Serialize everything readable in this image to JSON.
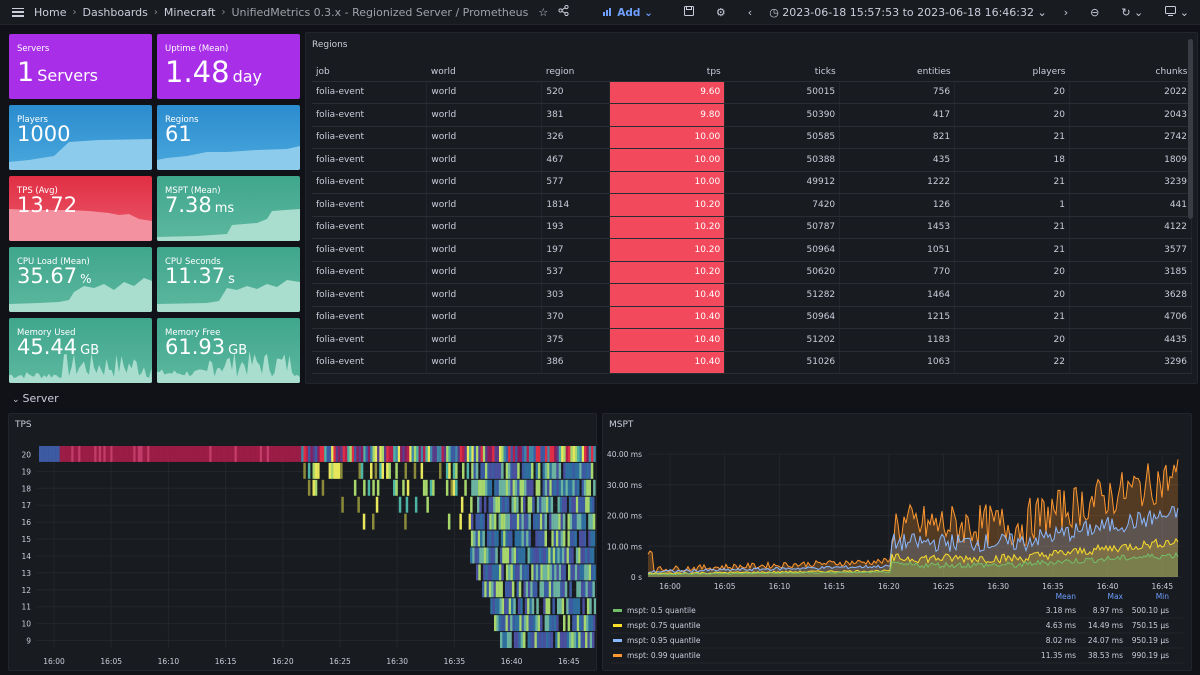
{
  "breadcrumb": {
    "home": "Home",
    "dashboards": "Dashboards",
    "folder": "Minecraft",
    "title": "UnifiedMetrics 0.3.x - Regionized Server / Prometheus"
  },
  "toolbar": {
    "add_label": "Add",
    "time_range": "2023-06-18 15:57:53 to 2023-06-18 16:46:32",
    "icons": [
      "star-icon",
      "share-icon",
      "save-icon",
      "gear-icon",
      "clock-icon",
      "zoom-out-icon",
      "refresh-icon",
      "tv-icon"
    ]
  },
  "stats": {
    "servers": {
      "title": "Servers",
      "value": "1",
      "unit": "Servers",
      "color": "#a82ee8"
    },
    "uptime": {
      "title": "Uptime (Mean)",
      "value": "1.48",
      "unit": "day",
      "color": "#a82ee8"
    },
    "players": {
      "title": "Players",
      "value": "1000",
      "unit": "",
      "color": "#2b8ccf"
    },
    "regions": {
      "title": "Regions",
      "value": "61",
      "unit": "",
      "color": "#2b8ccf"
    },
    "tps": {
      "title": "TPS (Avg)",
      "value": "13.72",
      "unit": "",
      "color": "#e02f44"
    },
    "mspt": {
      "title": "MSPT (Mean)",
      "value": "7.38",
      "unit": "ms",
      "color": "#3fa68c"
    },
    "cpu_load": {
      "title": "CPU Load (Mean)",
      "value": "35.67",
      "unit": "%",
      "color": "#3fa68c"
    },
    "cpu_seconds": {
      "title": "CPU Seconds",
      "value": "11.37",
      "unit": "s",
      "color": "#3fa68c"
    },
    "memory_used": {
      "title": "Memory Used",
      "value": "45.44",
      "unit": "GB",
      "color": "#3fa68c"
    },
    "memory_free": {
      "title": "Memory Free",
      "value": "61.93",
      "unit": "GB",
      "color": "#3fa68c"
    }
  },
  "regions_table": {
    "title": "Regions",
    "columns": [
      "job",
      "world",
      "region",
      "tps",
      "ticks",
      "entities",
      "players",
      "chunks"
    ],
    "rows": [
      [
        "folia-event",
        "world",
        "520",
        "9.60",
        "50015",
        "756",
        "20",
        "2022"
      ],
      [
        "folia-event",
        "world",
        "381",
        "9.80",
        "50390",
        "417",
        "20",
        "2043"
      ],
      [
        "folia-event",
        "world",
        "326",
        "10.00",
        "50585",
        "821",
        "21",
        "2742"
      ],
      [
        "folia-event",
        "world",
        "467",
        "10.00",
        "50388",
        "435",
        "18",
        "1809"
      ],
      [
        "folia-event",
        "world",
        "577",
        "10.00",
        "49912",
        "1222",
        "21",
        "3239"
      ],
      [
        "folia-event",
        "world",
        "1814",
        "10.20",
        "7420",
        "126",
        "1",
        "441"
      ],
      [
        "folia-event",
        "world",
        "193",
        "10.20",
        "50787",
        "1453",
        "21",
        "4122"
      ],
      [
        "folia-event",
        "world",
        "197",
        "10.20",
        "50964",
        "1051",
        "21",
        "3577"
      ],
      [
        "folia-event",
        "world",
        "537",
        "10.20",
        "50620",
        "770",
        "20",
        "3185"
      ],
      [
        "folia-event",
        "world",
        "303",
        "10.40",
        "51282",
        "1464",
        "20",
        "3628"
      ],
      [
        "folia-event",
        "world",
        "370",
        "10.40",
        "50964",
        "1215",
        "21",
        "4706"
      ],
      [
        "folia-event",
        "world",
        "375",
        "10.40",
        "51202",
        "1183",
        "20",
        "4435"
      ],
      [
        "folia-event",
        "world",
        "386",
        "10.40",
        "51026",
        "1063",
        "22",
        "3296"
      ]
    ]
  },
  "row_section": {
    "label": "Server"
  },
  "tps_panel": {
    "title": "TPS",
    "y_ticks": [
      "20",
      "19",
      "18",
      "17",
      "16",
      "15",
      "14",
      "13",
      "12",
      "11",
      "10",
      "9"
    ],
    "x_ticks": [
      "16:00",
      "16:05",
      "16:10",
      "16:15",
      "16:20",
      "16:25",
      "16:30",
      "16:35",
      "16:40",
      "16:45"
    ]
  },
  "mspt_panel": {
    "title": "MSPT",
    "y_ticks": [
      "40.00 ms",
      "30.00 ms",
      "20.00 ms",
      "10.00 ms",
      "0 s"
    ],
    "x_ticks": [
      "16:00",
      "16:05",
      "16:10",
      "16:15",
      "16:20",
      "16:25",
      "16:30",
      "16:35",
      "16:40",
      "16:45"
    ],
    "legend_headers": [
      "Mean",
      "Max",
      "Min"
    ],
    "legend": [
      {
        "name": "mspt: 0.5 quantile",
        "color": "#73bf69",
        "mean": "3.18 ms",
        "max": "8.97 ms",
        "min": "500.10 µs"
      },
      {
        "name": "mspt: 0.75 quantile",
        "color": "#fade2a",
        "mean": "4.63 ms",
        "max": "14.49 ms",
        "min": "750.15 µs"
      },
      {
        "name": "mspt: 0.95 quantile",
        "color": "#8ab8ff",
        "mean": "8.02 ms",
        "max": "24.07 ms",
        "min": "950.19 µs"
      },
      {
        "name": "mspt: 0.99 quantile",
        "color": "#ff9830",
        "mean": "11.35 ms",
        "max": "38.53 ms",
        "min": "990.19 µs"
      }
    ]
  }
}
